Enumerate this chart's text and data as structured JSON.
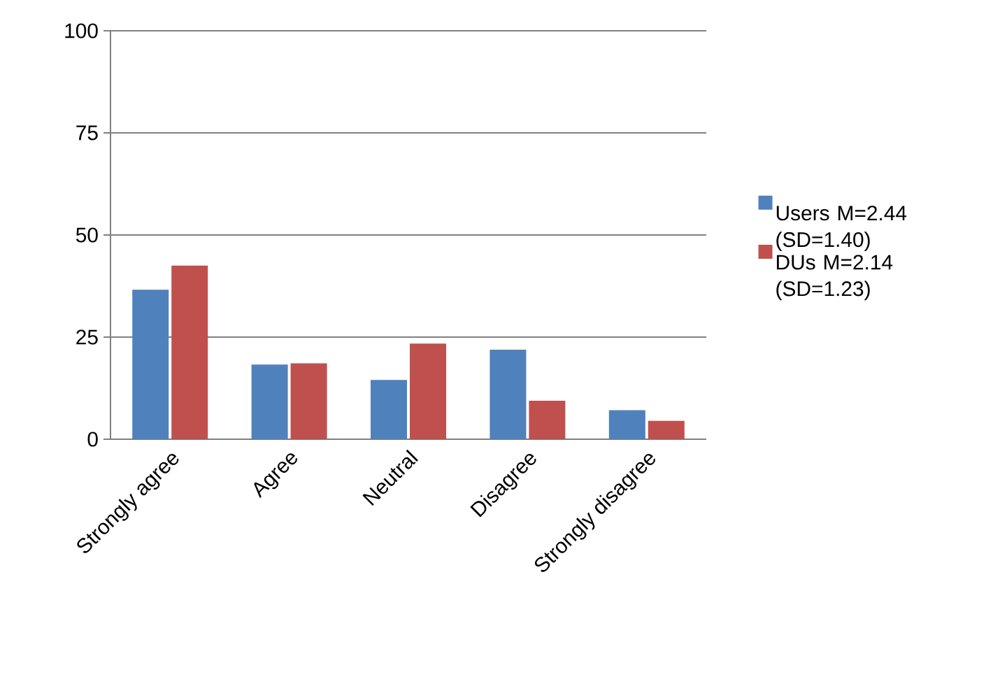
{
  "chart_data": {
    "type": "bar",
    "categories": [
      "Strongly agree",
      "Agree",
      "Neutral",
      "Disagree",
      "Strongly disagree"
    ],
    "series": [
      {
        "name": "Users M=2.44 (SD=1.40)",
        "color": "#4f81bd",
        "values": [
          36.6,
          18.3,
          14.5,
          21.9,
          7.1
        ]
      },
      {
        "name": "DUs M=2.14 (SD=1.23)",
        "color": "#c0504d",
        "values": [
          42.5,
          18.6,
          23.4,
          9.4,
          4.5
        ]
      }
    ],
    "ylim": [
      0,
      100
    ],
    "yticks": [
      0,
      25,
      50,
      75,
      100
    ],
    "grid": "y",
    "legend": "right"
  }
}
